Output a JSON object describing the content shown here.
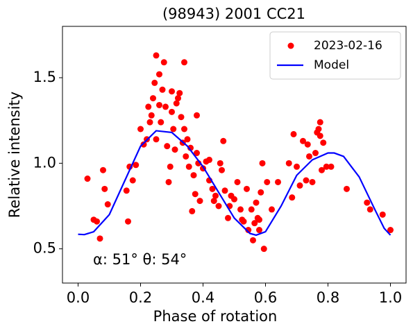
{
  "chart_data": {
    "type": "scatter",
    "title": "(98943) 2001 CC21",
    "x_label": "Phase of rotation",
    "y_label": "Relative intensity",
    "annotation": "α: 51° θ: 54°",
    "xlim": [
      -0.05,
      1.05
    ],
    "ylim": [
      0.3,
      1.8
    ],
    "xticks": [
      {
        "value": 0,
        "label": "0.0"
      },
      0.2,
      0.4,
      0.6,
      0.8,
      {
        "value": 1,
        "label": "1.0"
      }
    ],
    "yticks": [
      0.5,
      {
        "value": 1,
        "label": "1.0"
      },
      1.5
    ],
    "legend": "upper right",
    "grid": false,
    "series": [
      {
        "name": "2023-02-16",
        "type": "scatter",
        "color": "#ff0000",
        "x": [
          0.03,
          0.05,
          0.06,
          0.07,
          0.08,
          0.085,
          0.095,
          0.155,
          0.16,
          0.165,
          0.175,
          0.185,
          0.2,
          0.21,
          0.22,
          0.225,
          0.23,
          0.235,
          0.24,
          0.245,
          0.25,
          0.25,
          0.26,
          0.26,
          0.265,
          0.27,
          0.275,
          0.28,
          0.285,
          0.29,
          0.295,
          0.3,
          0.3,
          0.305,
          0.31,
          0.315,
          0.32,
          0.325,
          0.33,
          0.335,
          0.34,
          0.34,
          0.345,
          0.35,
          0.355,
          0.36,
          0.365,
          0.37,
          0.375,
          0.38,
          0.38,
          0.385,
          0.39,
          0.4,
          0.41,
          0.42,
          0.42,
          0.43,
          0.435,
          0.44,
          0.45,
          0.455,
          0.46,
          0.465,
          0.47,
          0.48,
          0.485,
          0.49,
          0.5,
          0.51,
          0.52,
          0.525,
          0.53,
          0.54,
          0.545,
          0.555,
          0.56,
          0.565,
          0.57,
          0.575,
          0.58,
          0.58,
          0.585,
          0.59,
          0.595,
          0.605,
          0.62,
          0.64,
          0.675,
          0.685,
          0.69,
          0.7,
          0.71,
          0.72,
          0.73,
          0.735,
          0.74,
          0.75,
          0.76,
          0.765,
          0.77,
          0.775,
          0.775,
          0.78,
          0.785,
          0.795,
          0.81,
          0.86,
          0.925,
          0.935,
          0.975,
          1.0
        ],
        "values": [
          0.91,
          0.67,
          0.66,
          0.56,
          0.96,
          0.85,
          0.76,
          0.84,
          0.66,
          0.98,
          0.9,
          0.99,
          1.2,
          1.11,
          1.14,
          1.33,
          1.24,
          1.28,
          1.38,
          1.47,
          1.63,
          1.14,
          1.52,
          1.34,
          1.24,
          1.43,
          1.59,
          1.33,
          1.1,
          0.89,
          0.98,
          1.42,
          1.3,
          1.2,
          1.08,
          1.35,
          1.38,
          1.41,
          1.27,
          1.12,
          1.59,
          1.2,
          1.04,
          1.14,
          0.98,
          1.09,
          0.72,
          0.93,
          0.82,
          1.28,
          1.06,
          1.0,
          0.78,
          0.97,
          1.01,
          1.02,
          0.9,
          0.85,
          0.78,
          0.81,
          0.75,
          1.0,
          0.96,
          1.13,
          0.84,
          0.68,
          0.75,
          0.81,
          0.79,
          0.89,
          0.73,
          0.67,
          0.66,
          0.85,
          0.61,
          0.73,
          0.55,
          0.65,
          0.77,
          0.68,
          0.61,
          0.67,
          0.83,
          1.0,
          0.5,
          0.89,
          0.73,
          0.89,
          1.0,
          0.8,
          1.17,
          0.98,
          0.87,
          1.13,
          0.9,
          1.11,
          1.04,
          0.89,
          1.06,
          1.18,
          1.2,
          1.24,
          1.16,
          0.96,
          1.12,
          0.98,
          0.98,
          0.85,
          0.77,
          0.73,
          0.7,
          0.61
        ]
      },
      {
        "name": "Model",
        "type": "line",
        "color": "#0000ff",
        "x": [
          0,
          0.02,
          0.05,
          0.1,
          0.15,
          0.2,
          0.25,
          0.3,
          0.35,
          0.4,
          0.45,
          0.5,
          0.55,
          0.57,
          0.6,
          0.65,
          0.7,
          0.75,
          0.8,
          0.82,
          0.85,
          0.9,
          0.95,
          0.98,
          1.0
        ],
        "values": [
          0.585,
          0.583,
          0.6,
          0.7,
          0.9,
          1.1,
          1.19,
          1.18,
          1.1,
          0.98,
          0.83,
          0.68,
          0.59,
          0.58,
          0.6,
          0.75,
          0.93,
          1.02,
          1.06,
          1.06,
          1.04,
          0.92,
          0.73,
          0.62,
          0.58
        ]
      }
    ]
  }
}
